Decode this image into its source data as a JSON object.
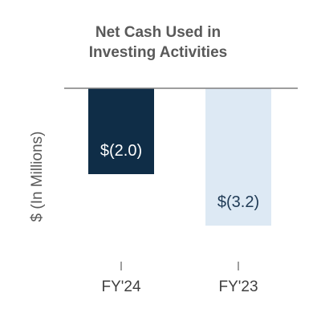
{
  "chart_data": {
    "type": "bar",
    "title_lines": [
      "Net Cash Used in",
      "Investing Activities"
    ],
    "title": "Net Cash Used in Investing Activities",
    "xlabel": "",
    "ylabel": "$ (In Millions)",
    "categories": [
      "FY'24",
      "FY'23"
    ],
    "values": [
      -2.0,
      -3.2
    ],
    "data_labels": [
      "$(2.0)",
      "$(3.2)"
    ],
    "bar_colors": [
      "#0f2d47",
      "#dde9f4"
    ],
    "label_colors": [
      "#ffffff",
      "#1f3a55"
    ],
    "axis_color": "#7f7f7f",
    "ylim": [
      -4,
      0
    ],
    "grid": false,
    "legend": "none"
  }
}
